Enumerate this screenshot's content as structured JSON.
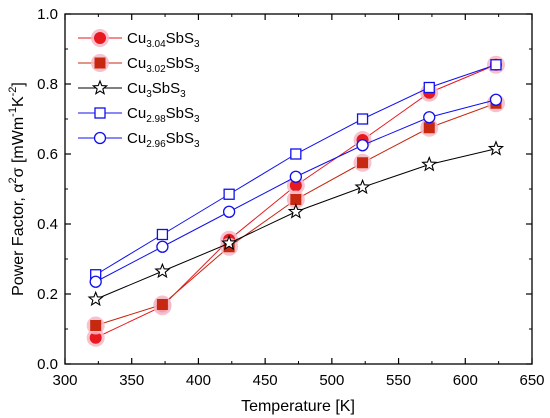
{
  "chart_data": {
    "type": "line",
    "xlabel": "Temperature [K]",
    "ylabel": {
      "text": "Power Factor, ",
      "symbol_base": "α",
      "symbol_sup": "2",
      "symbol_tail": "σ [mWm",
      "exp1": "-1",
      "mid": "K",
      "exp2": "-2",
      "end": "]"
    },
    "xlim": [
      300,
      650
    ],
    "ylim": [
      0.0,
      1.0
    ],
    "xticks": [
      "300",
      "350",
      "400",
      "450",
      "500",
      "550",
      "600",
      "650"
    ],
    "yticks": [
      "0.0",
      "0.2",
      "0.4",
      "0.6",
      "0.8",
      "1.0"
    ],
    "grid": false,
    "legend_position": "top-left",
    "x": [
      323,
      373,
      423,
      473,
      523,
      573,
      623
    ],
    "series": [
      {
        "name": "Cu3.04SbS3",
        "legend": {
          "base1": "Cu",
          "sub1": "3.04",
          "base2": "SbS",
          "sub2": "3"
        },
        "marker": "circle-filled",
        "color": "#e8191f",
        "halo": "#f3b7c5",
        "values": [
          0.075,
          0.165,
          0.355,
          0.51,
          0.64,
          0.775,
          0.855
        ]
      },
      {
        "name": "Cu3.02SbS3",
        "legend": {
          "base1": "Cu",
          "sub1": "3.02",
          "base2": "SbS",
          "sub2": "3"
        },
        "marker": "square-filled",
        "color": "#c62810",
        "halo": "#f3b7c5",
        "values": [
          0.11,
          0.17,
          0.335,
          0.47,
          0.575,
          0.675,
          0.745
        ]
      },
      {
        "name": "Cu3SbS3",
        "legend": {
          "base1": "Cu",
          "sub1": "3",
          "base2": "SbS",
          "sub2": "3"
        },
        "marker": "star-open",
        "color": "#000000",
        "halo": null,
        "values": [
          0.185,
          0.265,
          0.345,
          0.435,
          0.505,
          0.57,
          0.615
        ]
      },
      {
        "name": "Cu2.98SbS3",
        "legend": {
          "base1": "Cu",
          "sub1": "2.98",
          "base2": "SbS",
          "sub2": "3"
        },
        "marker": "square-open",
        "color": "#1010ee",
        "halo": null,
        "values": [
          0.255,
          0.37,
          0.485,
          0.6,
          0.7,
          0.79,
          0.855
        ]
      },
      {
        "name": "Cu2.96SbS3",
        "legend": {
          "base1": "Cu",
          "sub1": "2.96",
          "base2": "SbS",
          "sub2": "3"
        },
        "marker": "circle-open",
        "color": "#1010ee",
        "halo": null,
        "values": [
          0.235,
          0.335,
          0.435,
          0.535,
          0.625,
          0.705,
          0.755
        ]
      }
    ]
  }
}
